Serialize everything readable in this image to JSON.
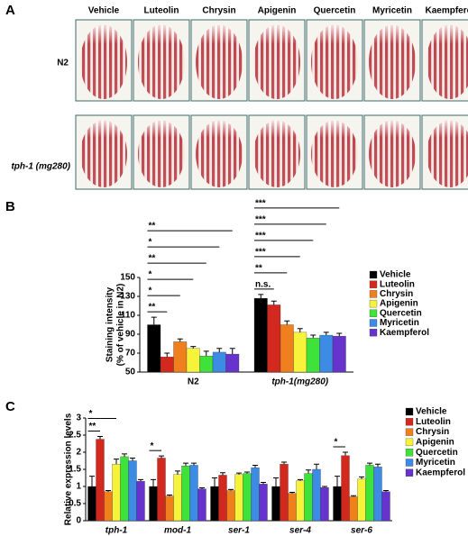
{
  "panel_a": {
    "label": "A",
    "columns": [
      "Vehicle",
      "Luteolin",
      "Chrysin",
      "Apigenin",
      "Quercetin",
      "Myricetin",
      "Kaempferol"
    ],
    "rows": [
      "N2",
      "tph-1 (mg280)"
    ]
  },
  "chart_data": [
    {
      "type": "bar",
      "label": "B",
      "y_label": [
        "Staining intensity",
        "(% of vehicle in N2)"
      ],
      "categories": [
        "N2",
        "tph-1(mg280)"
      ],
      "ylim": [
        50,
        150
      ],
      "yticks": [
        50,
        70,
        90,
        110,
        130,
        150
      ],
      "legend": "right",
      "series": [
        {
          "name": "Vehicle",
          "color": "#000000",
          "values": [
            100,
            128
          ],
          "errors": [
            8,
            4
          ]
        },
        {
          "name": "Luteolin",
          "color": "#d2281e",
          "values": [
            66,
            121
          ],
          "errors": [
            4,
            4
          ],
          "significance": [
            "**",
            "n.s."
          ]
        },
        {
          "name": "Chrysin",
          "color": "#f07f1e",
          "values": [
            82,
            100
          ],
          "errors": [
            3,
            4
          ],
          "significance": [
            "*",
            "**"
          ]
        },
        {
          "name": "Apigenin",
          "color": "#f7f23a",
          "values": [
            75,
            92
          ],
          "errors": [
            2,
            4
          ],
          "significance": [
            "*",
            "***"
          ]
        },
        {
          "name": "Quercetin",
          "color": "#3ee23a",
          "values": [
            67,
            86
          ],
          "errors": [
            5,
            3
          ],
          "significance": [
            "**",
            "***"
          ]
        },
        {
          "name": "Myricetin",
          "color": "#3c8ce6",
          "values": [
            71,
            89
          ],
          "errors": [
            4,
            3
          ],
          "significance": [
            "*",
            "***"
          ]
        },
        {
          "name": "Kaempferol",
          "color": "#6633cc",
          "values": [
            69,
            88
          ],
          "errors": [
            6,
            3
          ],
          "significance": [
            "**",
            "***"
          ]
        }
      ]
    },
    {
      "type": "bar",
      "label": "C",
      "y_label": [
        "Relative expression levels"
      ],
      "categories": [
        "tph-1",
        "mod-1",
        "ser-1",
        "ser-4",
        "ser-6"
      ],
      "ylim": [
        0,
        3
      ],
      "yticks": [
        0,
        0.5,
        1,
        1.5,
        2,
        2.5,
        3
      ],
      "legend": "right",
      "series": [
        {
          "name": "Vehicle",
          "color": "#000000",
          "values": [
            1,
            1,
            1,
            1,
            1
          ],
          "errors": [
            0.3,
            0.2,
            0.25,
            0.25,
            0.3
          ]
        },
        {
          "name": "Luteolin",
          "color": "#d2281e",
          "values": [
            2.38,
            1.83,
            1.33,
            1.65,
            1.9
          ],
          "errors": [
            0.08,
            0.06,
            0.07,
            0.06,
            0.1
          ],
          "significance": [
            "**",
            "*",
            null,
            null,
            "*"
          ]
        },
        {
          "name": "Chrysin",
          "color": "#f07f1e",
          "values": [
            0.85,
            0.72,
            0.88,
            0.8,
            0.7
          ],
          "errors": [
            0.03,
            0.03,
            0.03,
            0.03,
            0.03
          ]
        },
        {
          "name": "Apigenin",
          "color": "#f7f23a",
          "values": [
            1.65,
            1.35,
            1.35,
            1.17,
            1.22
          ],
          "errors": [
            0.15,
            0.1,
            0.04,
            0.03,
            0.06
          ],
          "significance": [
            "*",
            null,
            null,
            null,
            null
          ]
        },
        {
          "name": "Quercetin",
          "color": "#3ee23a",
          "values": [
            1.87,
            1.6,
            1.38,
            1.38,
            1.62
          ],
          "errors": [
            0.08,
            0.08,
            0.04,
            0.1,
            0.06
          ]
        },
        {
          "name": "Myricetin",
          "color": "#3c8ce6",
          "values": [
            1.75,
            1.62,
            1.55,
            1.5,
            1.57
          ],
          "errors": [
            0.08,
            0.06,
            0.07,
            0.15,
            0.08
          ]
        },
        {
          "name": "Kaempferol",
          "color": "#6633cc",
          "values": [
            1.15,
            0.93,
            1.07,
            0.97,
            0.85
          ],
          "errors": [
            0.05,
            0.03,
            0.05,
            0.03,
            0.03
          ]
        }
      ]
    }
  ]
}
